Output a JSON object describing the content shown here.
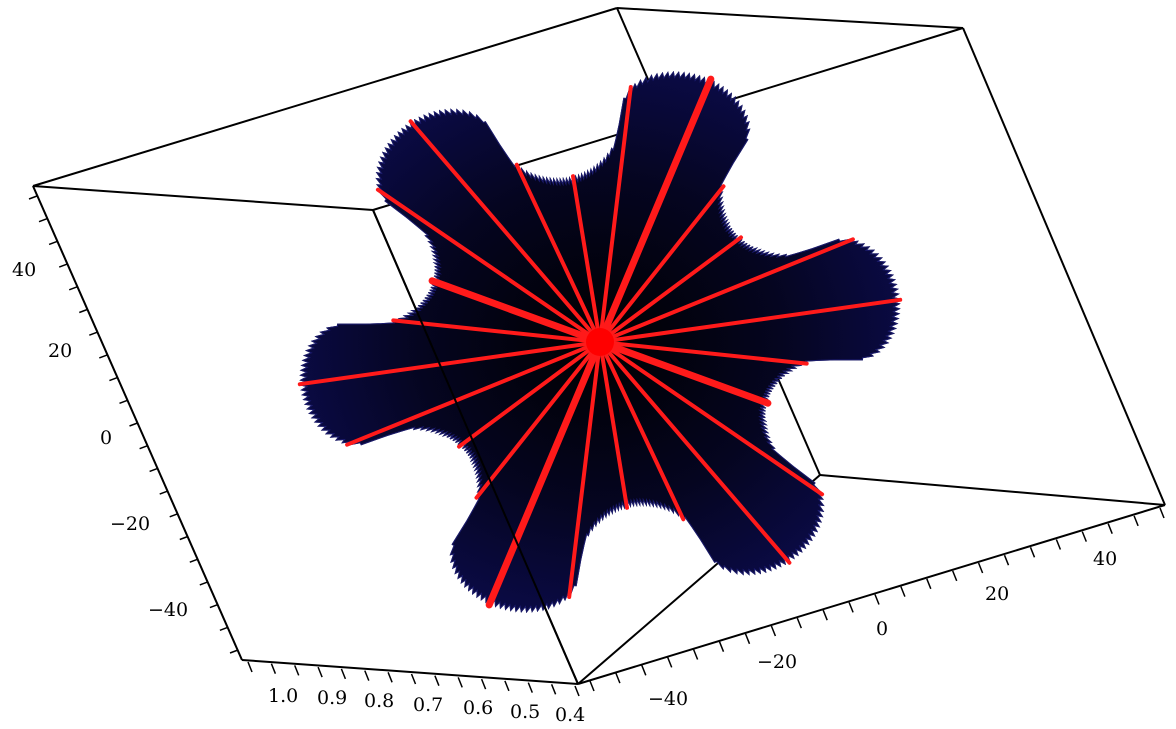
{
  "plot": {
    "type": "3d-surface-plot",
    "surface_color": "#0b0b4a",
    "surface_shadow_color": "#000000",
    "spoke_color": "#ff0000",
    "frame_color": "#000000",
    "spoke_count": 24,
    "lobe_count": 6
  },
  "axes": {
    "left_axis": {
      "ticks": [
        "40",
        "20",
        "0",
        "−20",
        "−40"
      ]
    },
    "bottom_front_axis": {
      "ticks": [
        "1.0",
        "0.9",
        "0.8",
        "0.7",
        "0.6",
        "0.5",
        "0.4"
      ]
    },
    "bottom_right_axis": {
      "ticks": [
        "−40",
        "−20",
        "0",
        "20",
        "40"
      ]
    }
  }
}
